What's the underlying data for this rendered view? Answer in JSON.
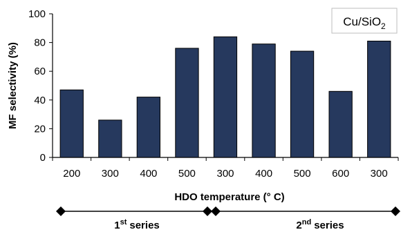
{
  "chart_data": {
    "type": "bar",
    "categories": [
      "200",
      "300",
      "400",
      "500",
      "300",
      "400",
      "500",
      "600",
      "300"
    ],
    "values": [
      47,
      26,
      42,
      76,
      84,
      79,
      74,
      46,
      81
    ],
    "xlabel": "HDO temperature (° C)",
    "ylabel": "MF selectivity (%)",
    "ylim": [
      0,
      100
    ],
    "yticks": [
      "0",
      "20",
      "40",
      "60",
      "80",
      "100"
    ],
    "grid": false,
    "bar_color": "#26395e",
    "legend": {
      "text": "Cu/SiO",
      "subscript": "2",
      "placement": "top-right"
    },
    "groups": [
      {
        "ordinal": "1",
        "suffix": "st",
        "word": "series",
        "count": 4
      },
      {
        "ordinal": "2",
        "suffix": "nd",
        "word": "series",
        "count": 5
      }
    ]
  }
}
